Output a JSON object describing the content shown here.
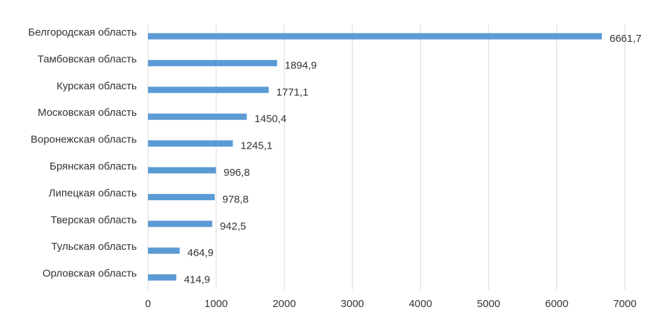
{
  "chart_data": {
    "type": "bar",
    "orientation": "horizontal",
    "title": "",
    "xlabel": "",
    "ylabel": "",
    "categories": [
      "Белгородская область",
      "Тамбовская область",
      "Курская область",
      "Московская область",
      "Воронежская область",
      "Брянская область",
      "Липецкая область",
      "Тверская область",
      "Тульская область",
      "Орловская область"
    ],
    "values": [
      6661.7,
      1894.9,
      1771.1,
      1450.4,
      1245.1,
      996.8,
      978.8,
      942.5,
      464.9,
      414.9
    ],
    "value_labels": [
      "6661,7",
      "1894,9",
      "1771,1",
      "1450,4",
      "1245,1",
      "996,8",
      "978,8",
      "942,5",
      "464,9",
      "414,9"
    ],
    "xlim": [
      0,
      7000
    ],
    "x_ticks": [
      0,
      1000,
      2000,
      3000,
      4000,
      5000,
      6000,
      7000
    ],
    "x_tick_labels": [
      "0",
      "1000",
      "2000",
      "3000",
      "4000",
      "5000",
      "6000",
      "7000"
    ],
    "grid": "vertical",
    "legend": "none",
    "bar_color": "#5b9bd5"
  }
}
